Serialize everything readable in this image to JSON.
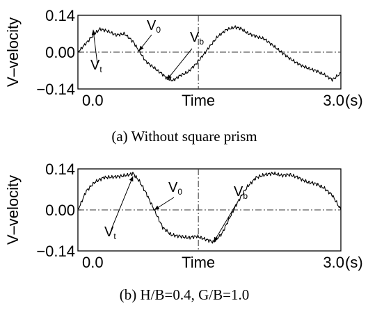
{
  "chart_data": [
    {
      "type": "line",
      "caption": "(a)  Without square prism",
      "ylabel": "V–velocity",
      "xlabel": "Time",
      "x_unit": "(s)",
      "x_ticks": [
        "0.0",
        "3.0"
      ],
      "y_ticks": [
        "0.14",
        "0.00",
        "−0.14"
      ],
      "xlim": [
        -0.1,
        3.0
      ],
      "ylim": [
        -0.14,
        0.14
      ],
      "reference_lines": {
        "horizontal": 0.0,
        "vertical": 1.32
      },
      "annotations": [
        {
          "text": "V",
          "sub": "t",
          "x": 0.08,
          "y": 0.085
        },
        {
          "text": "V",
          "sub": "0",
          "x": 0.62,
          "y": 0.005
        },
        {
          "text": "V",
          "sub": "b",
          "x": 0.95,
          "y": -0.105
        }
      ],
      "series": [
        {
          "x": [
            -0.1,
            0.0,
            0.08,
            0.16,
            0.25,
            0.35,
            0.45,
            0.55,
            0.62,
            0.7,
            0.8,
            0.9,
            0.95,
            1.02,
            1.1,
            1.2,
            1.32,
            1.45,
            1.55,
            1.65,
            1.75,
            1.82,
            1.9,
            2.0,
            2.1,
            2.2,
            2.3,
            2.4,
            2.5,
            2.6,
            2.7,
            2.8,
            2.9,
            3.0
          ],
          "y": [
            0.0,
            0.035,
            0.065,
            0.088,
            0.08,
            0.065,
            0.07,
            0.04,
            0.005,
            -0.035,
            -0.06,
            -0.085,
            -0.1,
            -0.108,
            -0.09,
            -0.075,
            -0.035,
            0.02,
            0.06,
            0.085,
            0.095,
            0.09,
            0.072,
            0.06,
            0.05,
            0.025,
            0.0,
            -0.025,
            -0.045,
            -0.06,
            -0.07,
            -0.085,
            -0.105,
            -0.08
          ]
        }
      ]
    },
    {
      "type": "line",
      "caption": "(b)  H/B=0.4,  G/B=1.0",
      "ylabel": "V–velocity",
      "xlabel": "Time",
      "x_unit": "(s)",
      "x_ticks": [
        "0.0",
        "3.0"
      ],
      "y_ticks": [
        "0.14",
        "0.00",
        "−0.14"
      ],
      "xlim": [
        -0.1,
        3.0
      ],
      "ylim": [
        -0.14,
        0.14
      ],
      "reference_lines": {
        "horizontal": 0.0,
        "vertical": 1.32
      },
      "annotations": [
        {
          "text": "V",
          "sub": "t",
          "x": 0.55,
          "y": 0.115
        },
        {
          "text": "V",
          "sub": "0",
          "x": 0.8,
          "y": 0.0
        },
        {
          "text": "V",
          "sub": "b",
          "x": 1.5,
          "y": -0.11
        }
      ],
      "series": [
        {
          "x": [
            -0.1,
            0.0,
            0.1,
            0.2,
            0.3,
            0.4,
            0.5,
            0.55,
            0.62,
            0.7,
            0.8,
            0.9,
            1.0,
            1.1,
            1.2,
            1.3,
            1.4,
            1.5,
            1.6,
            1.7,
            1.8,
            1.9,
            2.0,
            2.1,
            2.2,
            2.3,
            2.4,
            2.5,
            2.6,
            2.7,
            2.8,
            2.9,
            3.0
          ],
          "y": [
            0.0,
            0.065,
            0.095,
            0.11,
            0.112,
            0.115,
            0.12,
            0.125,
            0.1,
            0.06,
            0.0,
            -0.06,
            -0.085,
            -0.09,
            -0.095,
            -0.09,
            -0.1,
            -0.11,
            -0.08,
            -0.02,
            0.035,
            0.08,
            0.11,
            0.12,
            0.125,
            0.118,
            0.12,
            0.11,
            0.095,
            0.09,
            0.075,
            0.05,
            0.0
          ]
        }
      ]
    }
  ]
}
